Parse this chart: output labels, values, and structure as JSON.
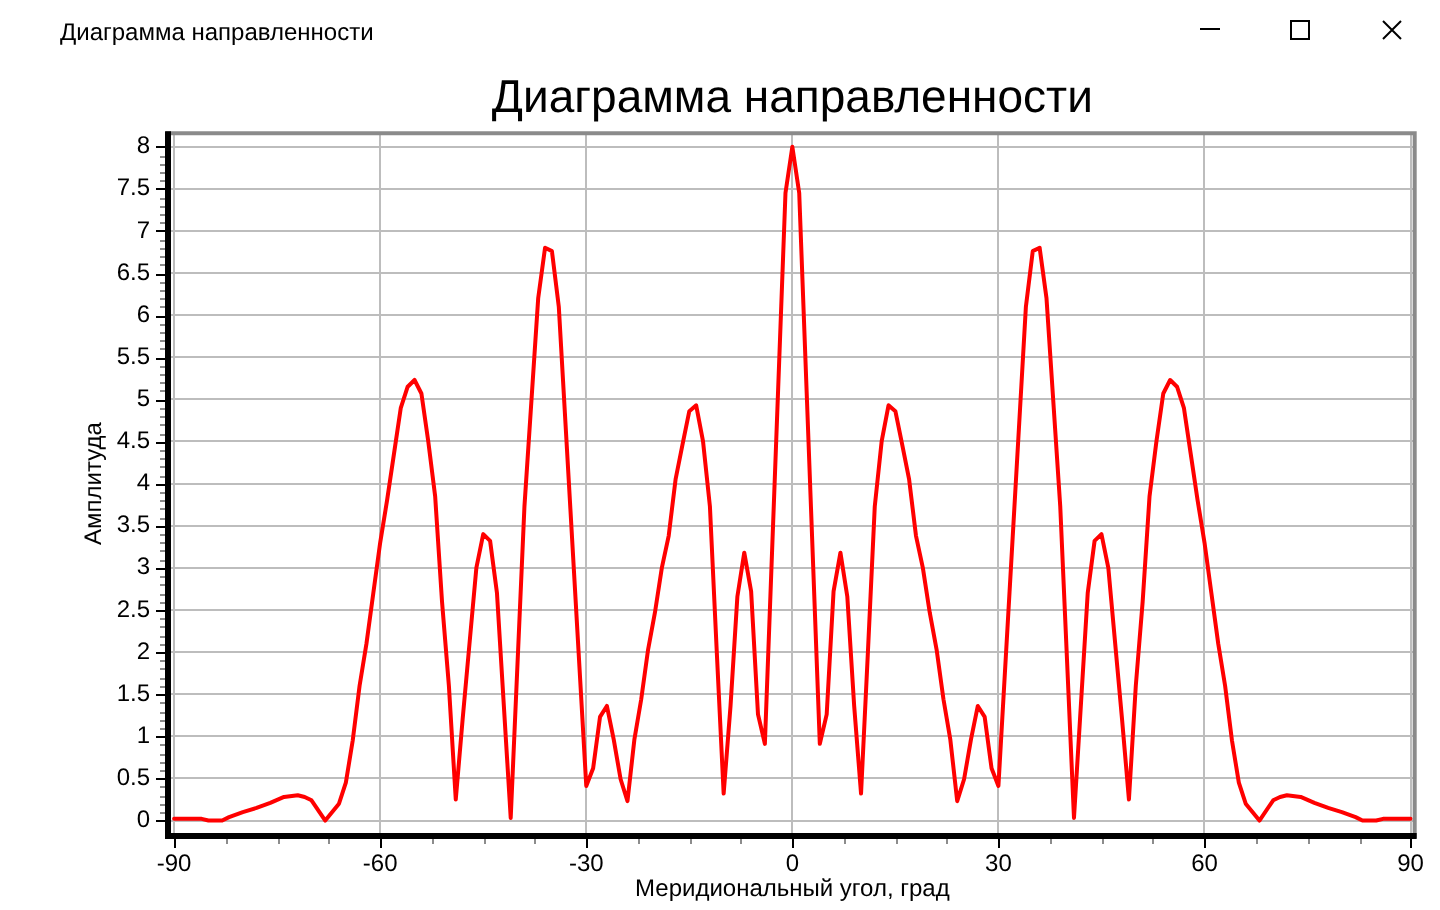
{
  "chart_data": {
    "type": "line",
    "title": "Диаграмма направленности",
    "xlabel": "Меридиональный угол, град",
    "ylabel": "Амплитуда",
    "annotations": [
      "Диаграмма направленности"
    ],
    "color": "#ff0000",
    "marker": "none",
    "grid": true,
    "x": [
      -90,
      -86,
      -85,
      -83,
      -82,
      -80,
      -78,
      -76,
      -74,
      -72,
      -71,
      -70,
      -68,
      -66,
      -65,
      -64,
      -63,
      -62,
      -61,
      -60,
      -59,
      -58,
      -57,
      -56,
      -55,
      -54,
      -53,
      -52,
      -51,
      -50,
      -49,
      -48,
      -46,
      -45,
      -44,
      -43,
      -41,
      -39,
      -37,
      -36,
      -35,
      -34,
      -30,
      -29,
      -28,
      -27,
      -26,
      -25,
      -24,
      -23,
      -22,
      -21,
      -20,
      -19,
      -18,
      -17,
      -16,
      -15,
      -14,
      -13,
      -12,
      -11,
      -10,
      -9,
      -8,
      -7,
      -6,
      -5,
      -4,
      -1,
      0,
      1,
      4,
      5,
      6,
      7,
      8,
      9,
      10,
      11,
      12,
      13,
      14,
      15,
      16,
      17,
      18,
      19,
      20,
      21,
      22,
      23,
      24,
      25,
      26,
      27,
      28,
      29,
      30,
      34,
      35,
      36,
      37,
      39,
      41,
      43,
      44,
      45,
      46,
      48,
      49,
      50,
      51,
      52,
      53,
      54,
      55,
      56,
      57,
      58,
      59,
      60,
      61,
      62,
      63,
      64,
      65,
      66,
      68,
      70,
      71,
      72,
      74,
      76,
      78,
      80,
      82,
      83,
      85,
      86,
      90
    ],
    "values": [
      0.02,
      0.02,
      0,
      0,
      0.04,
      0.1,
      0.15,
      0.21,
      0.28,
      0.3,
      0.28,
      0.24,
      0,
      0.2,
      0.45,
      0.95,
      1.6,
      2.1,
      2.7,
      3.3,
      3.8,
      4.35,
      4.9,
      5.15,
      5.23,
      5.07,
      4.5,
      3.85,
      2.6,
      1.6,
      0.25,
      1.2,
      3.0,
      3.4,
      3.32,
      2.7,
      0.03,
      3.73,
      6.2,
      6.8,
      6.76,
      6.1,
      0.41,
      0.62,
      1.23,
      1.36,
      0.96,
      0.49,
      0.23,
      0.96,
      1.44,
      2.03,
      2.47,
      3.0,
      3.38,
      4.05,
      4.46,
      4.86,
      4.93,
      4.5,
      3.73,
      2.0,
      0.32,
      1.36,
      2.66,
      3.18,
      2.72,
      1.26,
      0.91,
      7.45,
      8.0,
      7.45,
      0.91,
      1.26,
      2.72,
      3.18,
      2.66,
      1.36,
      0.32,
      2.0,
      3.73,
      4.5,
      4.93,
      4.86,
      4.46,
      4.05,
      3.38,
      3.0,
      2.47,
      2.03,
      1.44,
      0.96,
      0.23,
      0.49,
      0.96,
      1.36,
      1.23,
      0.62,
      0.41,
      6.1,
      6.76,
      6.8,
      6.2,
      3.73,
      0.03,
      2.7,
      3.32,
      3.4,
      3.0,
      1.2,
      0.25,
      1.6,
      2.6,
      3.85,
      4.5,
      5.07,
      5.23,
      5.15,
      4.9,
      4.35,
      3.8,
      3.3,
      2.7,
      2.1,
      1.6,
      0.95,
      0.45,
      0.2,
      0,
      0.24,
      0.28,
      0.3,
      0.28,
      0.21,
      0.15,
      0.1,
      0.04,
      0,
      0,
      0.02,
      0.02
    ],
    "xlim": [
      -90.6,
      90.6
    ],
    "ylim": [
      -0.16,
      8.16
    ],
    "xticks": [
      -90,
      {
        "value": -82.5,
        "label": null
      },
      {
        "value": -75,
        "label": null
      },
      {
        "value": -67.5,
        "label": null
      },
      -60,
      {
        "value": -52.5,
        "label": null
      },
      {
        "value": -45,
        "label": null
      },
      {
        "value": -37.5,
        "label": null
      },
      -30,
      {
        "value": -22.5,
        "label": null
      },
      {
        "value": -15,
        "label": null
      },
      {
        "value": -7.5,
        "label": null
      },
      0,
      {
        "value": 7.5,
        "label": null
      },
      {
        "value": 15,
        "label": null
      },
      {
        "value": 22.5,
        "label": null
      },
      30,
      {
        "value": 37.5,
        "label": null
      },
      {
        "value": 45,
        "label": null
      },
      {
        "value": 52.5,
        "label": null
      },
      60,
      {
        "value": 67.5,
        "label": null
      },
      {
        "value": 75,
        "label": null
      },
      {
        "value": 82.5,
        "label": null
      },
      90
    ],
    "yticks": [
      0,
      {
        "value": 0.1,
        "label": null
      },
      {
        "value": 0.2,
        "label": null
      },
      {
        "value": 0.3,
        "label": null
      },
      {
        "value": 0.4,
        "label": null
      },
      0.5,
      {
        "value": 0.6,
        "label": null
      },
      {
        "value": 0.7,
        "label": null
      },
      {
        "value": 0.8,
        "label": null
      },
      {
        "value": 0.9,
        "label": null
      },
      1,
      {
        "value": 1.1,
        "label": null
      },
      {
        "value": 1.2,
        "label": null
      },
      {
        "value": 1.3,
        "label": null
      },
      {
        "value": 1.4,
        "label": null
      },
      1.5,
      {
        "value": 1.6,
        "label": null
      },
      {
        "value": 1.7,
        "label": null
      },
      {
        "value": 1.8,
        "label": null
      },
      {
        "value": 1.9,
        "label": null
      },
      2,
      {
        "value": 2.1,
        "label": null
      },
      {
        "value": 2.2,
        "label": null
      },
      {
        "value": 2.3,
        "label": null
      },
      {
        "value": 2.4,
        "label": null
      },
      2.5,
      {
        "value": 2.6,
        "label": null
      },
      {
        "value": 2.7,
        "label": null
      },
      {
        "value": 2.8,
        "label": null
      },
      {
        "value": 2.9,
        "label": null
      },
      3,
      {
        "value": 3.1,
        "label": null
      },
      {
        "value": 3.2,
        "label": null
      },
      {
        "value": 3.3,
        "label": null
      },
      {
        "value": 3.4,
        "label": null
      },
      3.5,
      {
        "value": 3.6,
        "label": null
      },
      {
        "value": 3.7,
        "label": null
      },
      {
        "value": 3.8,
        "label": null
      },
      {
        "value": 3.9,
        "label": null
      },
      4,
      {
        "value": 4.1,
        "label": null
      },
      {
        "value": 4.2,
        "label": null
      },
      {
        "value": 4.3,
        "label": null
      },
      {
        "value": 4.4,
        "label": null
      },
      4.5,
      {
        "value": 4.6,
        "label": null
      },
      {
        "value": 4.7,
        "label": null
      },
      {
        "value": 4.8,
        "label": null
      },
      {
        "value": 4.9,
        "label": null
      },
      5,
      {
        "value": 5.1,
        "label": null
      },
      {
        "value": 5.2,
        "label": null
      },
      {
        "value": 5.3,
        "label": null
      },
      {
        "value": 5.4,
        "label": null
      },
      5.5,
      {
        "value": 5.6,
        "label": null
      },
      {
        "value": 5.7,
        "label": null
      },
      {
        "value": 5.8,
        "label": null
      },
      {
        "value": 5.9,
        "label": null
      },
      6,
      {
        "value": 6.1,
        "label": null
      },
      {
        "value": 6.2,
        "label": null
      },
      {
        "value": 6.3,
        "label": null
      },
      {
        "value": 6.4,
        "label": null
      },
      6.5,
      {
        "value": 6.6,
        "label": null
      },
      {
        "value": 6.7,
        "label": null
      },
      {
        "value": 6.8,
        "label": null
      },
      {
        "value": 6.9,
        "label": null
      },
      7,
      {
        "value": 7.1,
        "label": null
      },
      {
        "value": 7.2,
        "label": null
      },
      {
        "value": 7.3,
        "label": null
      },
      {
        "value": 7.4,
        "label": null
      },
      7.5,
      {
        "value": 7.6,
        "label": null
      },
      {
        "value": 7.7,
        "label": null
      },
      {
        "value": 7.8,
        "label": null
      },
      {
        "value": 7.9,
        "label": null
      },
      8
    ]
  }
}
